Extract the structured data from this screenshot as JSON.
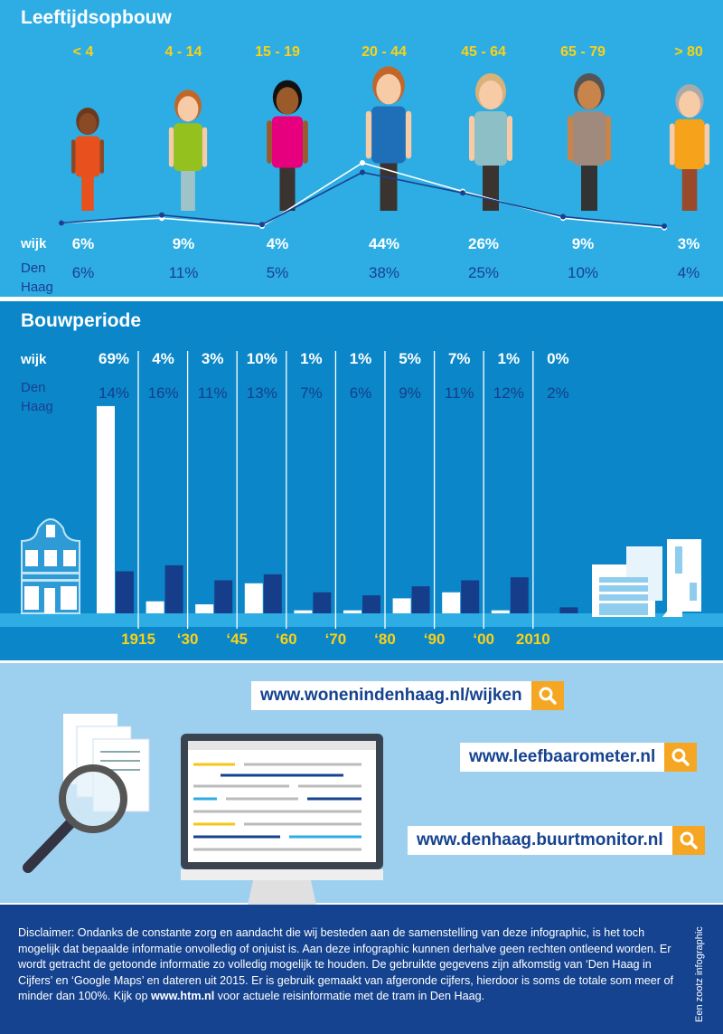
{
  "age_section": {
    "title": "Leeftijdsopbouw",
    "row_wijk_label": "wijk",
    "row_dh_label_1": "Den",
    "row_dh_label_2": "Haag"
  },
  "build_section": {
    "title": "Bouwperiode",
    "row_wijk_label": "wijk",
    "row_dh_label_1": "Den",
    "row_dh_label_2": "Haag"
  },
  "chart_data": [
    {
      "type": "line",
      "title": "Leeftijdsopbouw",
      "categories": [
        "< 4",
        "4 - 14",
        "15 - 19",
        "20 - 44",
        "45 - 64",
        "65 - 79",
        "> 80"
      ],
      "series": [
        {
          "name": "wijk",
          "values": [
            6,
            9,
            4,
            44,
            26,
            9,
            3
          ],
          "labels": [
            "6%",
            "9%",
            "4%",
            "44%",
            "26%",
            "9%",
            "3%"
          ],
          "color": "#ffffff"
        },
        {
          "name": "Den Haag",
          "values": [
            6,
            11,
            5,
            38,
            25,
            10,
            4
          ],
          "labels": [
            "6%",
            "11%",
            "5%",
            "38%",
            "25%",
            "10%",
            "4%"
          ],
          "color": "#1a3f8f"
        }
      ]
    },
    {
      "type": "bar",
      "title": "Bouwperiode",
      "boundaries": [
        "1915",
        "‘30",
        "‘45",
        "‘60",
        "‘70",
        "‘80",
        "‘90",
        "‘00",
        "2010"
      ],
      "series": [
        {
          "name": "wijk",
          "values": [
            69,
            4,
            3,
            10,
            1,
            1,
            5,
            7,
            1,
            0
          ],
          "labels": [
            "69%",
            "4%",
            "3%",
            "10%",
            "1%",
            "1%",
            "5%",
            "7%",
            "1%",
            "0%"
          ],
          "color": "#ffffff"
        },
        {
          "name": "Den Haag",
          "values": [
            14,
            16,
            11,
            13,
            7,
            6,
            9,
            11,
            12,
            2
          ],
          "labels": [
            "14%",
            "16%",
            "11%",
            "13%",
            "7%",
            "6%",
            "9%",
            "11%",
            "12%",
            "2%"
          ],
          "color": "#163d8a"
        }
      ]
    }
  ],
  "links": [
    {
      "url": "www.wonenindenhaag.nl/wijken",
      "icon": "search-icon"
    },
    {
      "url": "www.leefbaarometer.nl",
      "icon": "search-icon"
    },
    {
      "url": "www.denhaag.buurtmonitor.nl",
      "icon": "search-icon"
    }
  ],
  "footer": {
    "disclaimer_before": "Disclaimer: Ondanks de constante zorg en aandacht die wij besteden aan de samenstelling van deze infographic, is het toch mogelijk dat bepaalde informatie onvolledig of onjuist is. Aan deze infographic kunnen derhalve geen rechten ontleend worden. Er wordt getracht de getoonde informatie zo volledig mogelijk te houden. De gebruikte gegevens zijn afkomstig van ‘Den Haag in Cijfers’ en ‘Google Maps’ en dateren uit 2015. Er is gebruik gemaakt van afgeronde cijfers, hierdoor is soms de totale som meer of minder dan 100%. Kijk op ",
    "disclaimer_link": "www.htm.nl",
    "disclaimer_after": " voor actuele reisinformatie met de tram in Den Haag.",
    "credit": "Een zootz infographic"
  },
  "colors": {
    "age_bg": "#2dade3",
    "build_bg": "#0b87c9",
    "links_bg": "#9dd0ef",
    "footer_bg": "#15438f",
    "accent_yellow": "#fcd116",
    "search_orange": "#f5a623"
  }
}
